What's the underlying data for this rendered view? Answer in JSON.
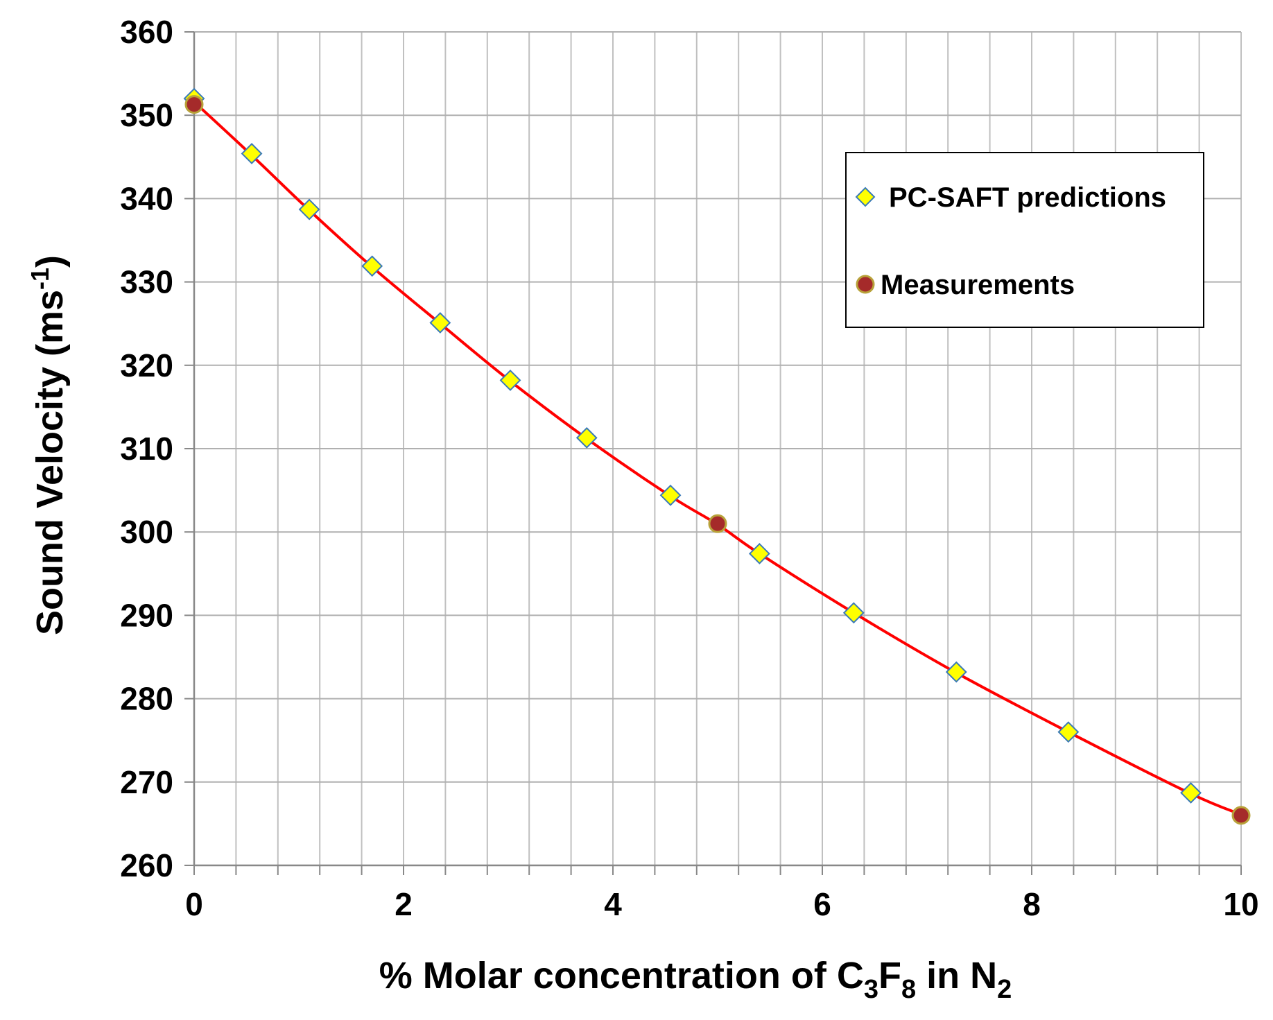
{
  "chart_data": {
    "type": "scatter",
    "title": "",
    "xlabel": {
      "prefix": "% Molar concentration of C",
      "sub1": "3",
      "mid": "F",
      "sub2": "8",
      "mid2": " in N",
      "sub3": "2"
    },
    "ylabel": {
      "prefix": "Sound Velocity  (ms",
      "sup": "-1",
      "suffix": ")"
    },
    "xlim": [
      0,
      10
    ],
    "ylim": [
      260,
      360
    ],
    "x_ticks": [
      "0",
      "2",
      "4",
      "6",
      "8",
      "10"
    ],
    "y_ticks": [
      "360",
      "350",
      "340",
      "330",
      "320",
      "310",
      "300",
      "290",
      "280",
      "270",
      "260"
    ],
    "x_minor_step": 0.4,
    "y_major_step": 10,
    "grid": true,
    "series": [
      {
        "name": "PC-SAFT predictions",
        "marker": "diamond",
        "color": "#ffff00",
        "edge_color": "#3a7ab8",
        "x": [
          0.0,
          0.55,
          1.1,
          1.7,
          2.35,
          3.02,
          3.75,
          4.55,
          5.4,
          6.3,
          7.28,
          8.35,
          9.52
        ],
        "y": [
          352.0,
          345.4,
          338.7,
          331.9,
          325.1,
          318.2,
          311.3,
          304.4,
          297.4,
          290.3,
          283.2,
          276.0,
          268.7
        ]
      },
      {
        "name": "Measurements",
        "marker": "circle",
        "color": "#a52a2a",
        "edge_color": "#b8a23a",
        "x": [
          0.0,
          5.0,
          10.0
        ],
        "y": [
          351.3,
          301.0,
          266.0
        ]
      }
    ],
    "fit_line": {
      "color": "#ff0000",
      "x": [
        0.0,
        0.55,
        1.1,
        1.7,
        2.35,
        3.02,
        3.75,
        4.55,
        5.0,
        5.4,
        6.3,
        7.28,
        8.35,
        9.52,
        10.0
      ],
      "y": [
        351.6,
        345.2,
        338.6,
        331.8,
        325.0,
        318.1,
        311.2,
        304.3,
        300.9,
        297.4,
        290.3,
        283.1,
        276.0,
        268.6,
        266.1
      ]
    },
    "legend": {
      "position": "upper-right",
      "entries": [
        "PC-SAFT predictions",
        "Measurements"
      ]
    }
  }
}
